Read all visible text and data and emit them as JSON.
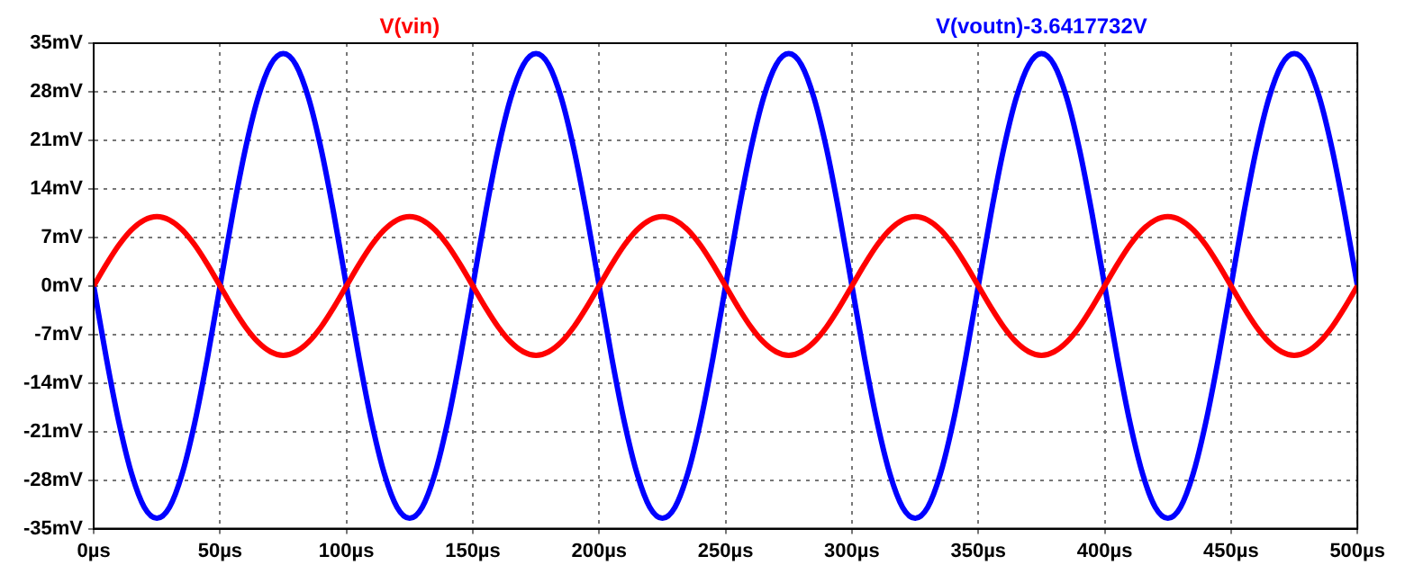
{
  "chart_data": {
    "type": "line",
    "legend": "top",
    "grid": true,
    "marker": "none",
    "line_style": "solid",
    "x": [
      0,
      5,
      10,
      15,
      20,
      25,
      30,
      35,
      40,
      45,
      50,
      55,
      60,
      65,
      70,
      75,
      80,
      85,
      90,
      95,
      100,
      105,
      110,
      115,
      120,
      125,
      130,
      135,
      140,
      145,
      150,
      155,
      160,
      165,
      170,
      175,
      180,
      185,
      190,
      195,
      200,
      205,
      210,
      215,
      220,
      225,
      230,
      235,
      240,
      245,
      250,
      255,
      260,
      265,
      270,
      275,
      280,
      285,
      290,
      295,
      300,
      305,
      310,
      315,
      320,
      325,
      330,
      335,
      340,
      345,
      350,
      355,
      360,
      365,
      370,
      375,
      380,
      385,
      390,
      395,
      400,
      405,
      410,
      415,
      420,
      425,
      430,
      435,
      440,
      445,
      450,
      455,
      460,
      465,
      470,
      475,
      480,
      485,
      490,
      495,
      500
    ],
    "xlim": [
      0,
      500
    ],
    "xticks": [
      {
        "value": 0,
        "label": "0µs"
      },
      {
        "value": 50,
        "label": "50µs"
      },
      {
        "value": 100,
        "label": "100µs"
      },
      {
        "value": 150,
        "label": "150µs"
      },
      {
        "value": 200,
        "label": "200µs"
      },
      {
        "value": 250,
        "label": "250µs"
      },
      {
        "value": 300,
        "label": "300µs"
      },
      {
        "value": 350,
        "label": "350µs"
      },
      {
        "value": 400,
        "label": "400µs"
      },
      {
        "value": 450,
        "label": "450µs"
      },
      {
        "value": 500,
        "label": "500µs"
      }
    ],
    "ylim": [
      -35,
      35
    ],
    "yticks": [
      {
        "value": -35,
        "label": "-35mV"
      },
      {
        "value": -28,
        "label": "-28mV"
      },
      {
        "value": -21,
        "label": "-21mV"
      },
      {
        "value": -14,
        "label": "-14mV"
      },
      {
        "value": -7,
        "label": "-7mV"
      },
      {
        "value": 0,
        "label": "0mV"
      },
      {
        "value": 7,
        "label": "7mV"
      },
      {
        "value": 14,
        "label": "14mV"
      },
      {
        "value": 21,
        "label": "21mV"
      },
      {
        "value": 28,
        "label": "28mV"
      },
      {
        "value": 35,
        "label": "35mV"
      }
    ],
    "series": [
      {
        "name": "V(vin)",
        "color": "#ff0000",
        "values": [
          0,
          3.1,
          5.9,
          8.1,
          9.5,
          10,
          9.5,
          8.1,
          5.9,
          3.1,
          0,
          -3.1,
          -5.9,
          -8.1,
          -9.5,
          -10,
          -9.5,
          -8.1,
          -5.9,
          -3.1,
          0,
          3.1,
          5.9,
          8.1,
          9.5,
          10,
          9.5,
          8.1,
          5.9,
          3.1,
          0,
          -3.1,
          -5.9,
          -8.1,
          -9.5,
          -10,
          -9.5,
          -8.1,
          -5.9,
          -3.1,
          0,
          3.1,
          5.9,
          8.1,
          9.5,
          10,
          9.5,
          8.1,
          5.9,
          3.1,
          0,
          -3.1,
          -5.9,
          -8.1,
          -9.5,
          -10,
          -9.5,
          -8.1,
          -5.9,
          -3.1,
          0,
          3.1,
          5.9,
          8.1,
          9.5,
          10,
          9.5,
          8.1,
          5.9,
          3.1,
          0,
          -3.1,
          -5.9,
          -8.1,
          -9.5,
          -10,
          -9.5,
          -8.1,
          -5.9,
          -3.1,
          0,
          3.1,
          5.9,
          8.1,
          9.5,
          10,
          9.5,
          8.1,
          5.9,
          3.1,
          0,
          -3.1,
          -5.9,
          -8.1,
          -9.5,
          -10,
          -9.5,
          -8.1,
          -5.9,
          -3.1,
          0
        ]
      },
      {
        "name": "V(voutn)-3.6417732V",
        "color": "#0000ff",
        "values": [
          0,
          -10.4,
          -19.7,
          -27.1,
          -31.9,
          -33.5,
          -31.9,
          -27.1,
          -19.7,
          -10.4,
          0,
          10.4,
          19.7,
          27.1,
          31.9,
          33.5,
          31.9,
          27.1,
          19.7,
          10.4,
          0,
          -10.4,
          -19.7,
          -27.1,
          -31.9,
          -33.5,
          -31.9,
          -27.1,
          -19.7,
          -10.4,
          0,
          10.4,
          19.7,
          27.1,
          31.9,
          33.5,
          31.9,
          27.1,
          19.7,
          10.4,
          0,
          -10.4,
          -19.7,
          -27.1,
          -31.9,
          -33.5,
          -31.9,
          -27.1,
          -19.7,
          -10.4,
          0,
          10.4,
          19.7,
          27.1,
          31.9,
          33.5,
          31.9,
          27.1,
          19.7,
          10.4,
          0,
          -10.4,
          -19.7,
          -27.1,
          -31.9,
          -33.5,
          -31.9,
          -27.1,
          -19.7,
          -10.4,
          0,
          10.4,
          19.7,
          27.1,
          31.9,
          33.5,
          31.9,
          27.1,
          19.7,
          10.4,
          0,
          -10.4,
          -19.7,
          -27.1,
          -31.9,
          -33.5,
          -31.9,
          -27.1,
          -19.7,
          -10.4,
          0,
          10.4,
          19.7,
          27.1,
          31.9,
          33.5,
          31.9,
          27.1,
          19.7,
          10.4,
          0
        ]
      }
    ]
  }
}
